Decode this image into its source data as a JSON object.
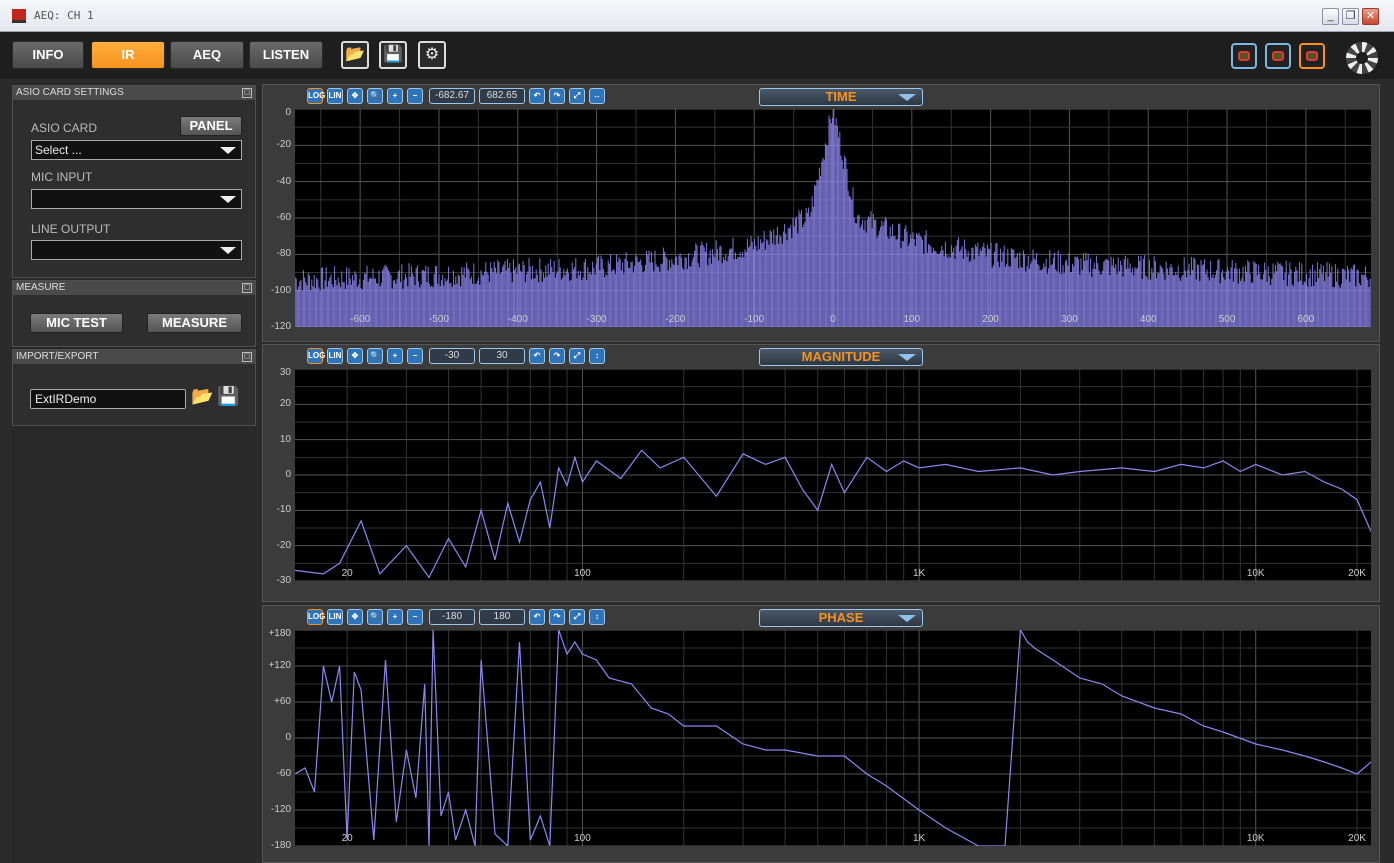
{
  "window": {
    "title": "AEQ: CH 1"
  },
  "toolbar": {
    "tabs": [
      {
        "label": "INFO",
        "active": false
      },
      {
        "label": "IR",
        "active": true
      },
      {
        "label": "AEQ",
        "active": false
      },
      {
        "label": "LISTEN",
        "active": false
      }
    ],
    "accent": "#f7921e"
  },
  "sidebar": {
    "asio": {
      "header": "ASIO CARD SETTINGS",
      "card_label": "ASIO CARD",
      "panel_button": "PANEL",
      "card_value": "Select ...",
      "mic_label": "MIC INPUT",
      "mic_value": "",
      "line_label": "LINE OUTPUT",
      "line_value": ""
    },
    "measure": {
      "header": "MEASURE",
      "mic_test_button": "MIC TEST",
      "measure_button": "MEASURE"
    },
    "import_export": {
      "header": "IMPORT/EXPORT",
      "file_value": "ExtIRDemo"
    }
  },
  "charts": {
    "time": {
      "mode": "TIME",
      "min": "-682.67",
      "max": "682.65"
    },
    "magnitude": {
      "mode": "MAGNITUDE",
      "min": "-30",
      "max": "30"
    },
    "phase": {
      "mode": "PHASE",
      "min": "-180",
      "max": "180"
    }
  },
  "chart_data": [
    {
      "type": "line",
      "title": "TIME",
      "xlim": [
        -682.67,
        682.65
      ],
      "ylim": [
        -120,
        0
      ],
      "x_ticks": [
        "-600",
        "-500",
        "-400",
        "-300",
        "-200",
        "-100",
        "0",
        "100",
        "200",
        "300",
        "400",
        "500",
        "600"
      ],
      "y_ticks": [
        "0",
        "-20",
        "-40",
        "-60",
        "-80",
        "-100",
        "-120"
      ],
      "envelope": {
        "x": [
          -682,
          -500,
          -300,
          -200,
          -100,
          -30,
          0,
          30,
          100,
          200,
          300,
          500,
          682
        ],
        "y": [
          -97,
          -94,
          -90,
          -85,
          -78,
          -62,
          -3,
          -62,
          -75,
          -83,
          -88,
          -92,
          -95
        ]
      },
      "color": "#8f86f0"
    },
    {
      "type": "line",
      "title": "MAGNITUDE",
      "xscale": "log",
      "xlim": [
        14,
        22000
      ],
      "ylim": [
        -30,
        30
      ],
      "x_ticks": [
        "20",
        "100",
        "1K",
        "10K",
        "20K"
      ],
      "y_ticks": [
        "30",
        "20",
        "10",
        "0",
        "-10",
        "-20",
        "-30"
      ],
      "x": [
        14,
        17,
        19,
        22,
        25,
        30,
        35,
        40,
        45,
        50,
        55,
        60,
        65,
        70,
        75,
        80,
        85,
        90,
        95,
        100,
        110,
        130,
        150,
        170,
        200,
        250,
        300,
        350,
        400,
        450,
        500,
        550,
        600,
        700,
        800,
        900,
        1000,
        1200,
        1500,
        2000,
        2500,
        3000,
        4000,
        5000,
        6000,
        7000,
        8000,
        9000,
        10000,
        12000,
        14000,
        16000,
        18000,
        20000,
        22000
      ],
      "y": [
        -27,
        -28,
        -25,
        -13,
        -28,
        -20,
        -29,
        -18,
        -26,
        -10,
        -24,
        -8,
        -19,
        -7,
        -2,
        -15,
        2,
        -3,
        5,
        -2,
        4,
        -1,
        7,
        2,
        5,
        -6,
        6,
        3,
        5,
        -4,
        -10,
        3,
        -5,
        5,
        1,
        4,
        2,
        3,
        1,
        2,
        0,
        1,
        2,
        1,
        3,
        2,
        4,
        1,
        3,
        0,
        1,
        -2,
        -4,
        -7,
        -16
      ],
      "color": "#8f86f0"
    },
    {
      "type": "line",
      "title": "PHASE",
      "xscale": "log",
      "xlim": [
        14,
        22000
      ],
      "ylim": [
        -180,
        180
      ],
      "x_ticks": [
        "20",
        "100",
        "1K",
        "10K",
        "20K"
      ],
      "y_ticks": [
        "+180",
        "+120",
        "+60",
        "0",
        "-60",
        "-120",
        "-180"
      ],
      "x": [
        14,
        15,
        16,
        17,
        18,
        19,
        20,
        21,
        22,
        24,
        26,
        28,
        30,
        32,
        34,
        35,
        36,
        38,
        40,
        42,
        45,
        48,
        50,
        55,
        60,
        65,
        70,
        75,
        80,
        85,
        90,
        95,
        100,
        110,
        120,
        140,
        160,
        180,
        200,
        250,
        300,
        350,
        400,
        500,
        600,
        700,
        800,
        1000,
        1200,
        1500,
        1800,
        2000,
        2100,
        2200,
        2500,
        3000,
        3500,
        4000,
        5000,
        6000,
        7000,
        8000,
        10000,
        12000,
        14000,
        16000,
        18000,
        20000,
        22000
      ],
      "y": [
        -60,
        -50,
        -90,
        120,
        60,
        120,
        -170,
        110,
        80,
        -170,
        130,
        -140,
        -20,
        -100,
        90,
        -180,
        180,
        -130,
        -90,
        -170,
        -120,
        -180,
        130,
        -160,
        -180,
        160,
        -170,
        -130,
        -180,
        180,
        140,
        160,
        140,
        130,
        100,
        90,
        50,
        40,
        20,
        20,
        -10,
        -20,
        -20,
        -30,
        -30,
        -60,
        -80,
        -120,
        -150,
        -180,
        -180,
        180,
        160,
        150,
        130,
        100,
        90,
        70,
        50,
        40,
        20,
        10,
        -10,
        -20,
        -30,
        -40,
        -50,
        -60,
        -40
      ],
      "color": "#8f86f0"
    }
  ]
}
